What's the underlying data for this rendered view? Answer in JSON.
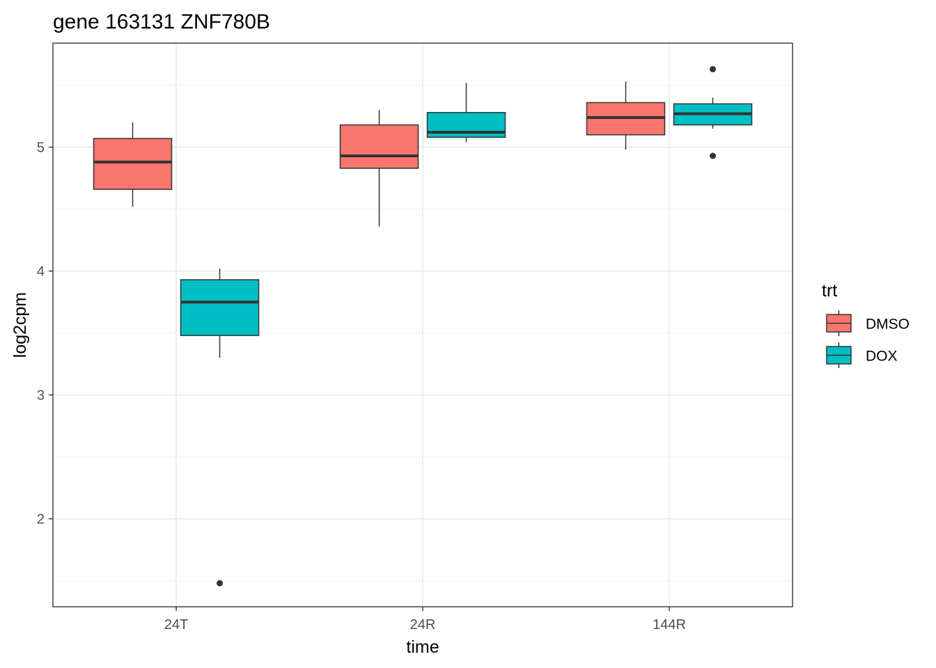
{
  "chart_data": {
    "type": "boxplot",
    "title": "gene 163131 ZNF780B",
    "xlabel": "time",
    "ylabel": "log2cpm",
    "categories": [
      "24T",
      "24R",
      "144R"
    ],
    "ylim": [
      1.29,
      5.84
    ],
    "yticks": [
      2,
      3,
      4,
      5
    ],
    "grid": true,
    "legend": {
      "title": "trt",
      "position": "right",
      "entries": [
        {
          "label": "DMSO",
          "color": "#F8766D"
        },
        {
          "label": "DOX",
          "color": "#00BFC4"
        }
      ]
    },
    "series": [
      {
        "name": "DMSO",
        "color": "#F8766D",
        "boxes": [
          {
            "category": "24T",
            "lower_whisker": 4.52,
            "q1": 4.66,
            "median": 4.88,
            "q3": 5.07,
            "upper_whisker": 5.2,
            "outliers": []
          },
          {
            "category": "24R",
            "lower_whisker": 4.36,
            "q1": 4.83,
            "median": 4.93,
            "q3": 5.18,
            "upper_whisker": 5.3,
            "outliers": []
          },
          {
            "category": "144R",
            "lower_whisker": 4.98,
            "q1": 5.1,
            "median": 5.24,
            "q3": 5.36,
            "upper_whisker": 5.53,
            "outliers": []
          }
        ]
      },
      {
        "name": "DOX",
        "color": "#00BFC4",
        "boxes": [
          {
            "category": "24T",
            "lower_whisker": 3.3,
            "q1": 3.48,
            "median": 3.75,
            "q3": 3.93,
            "upper_whisker": 4.02,
            "outliers": [
              1.48
            ]
          },
          {
            "category": "24R",
            "lower_whisker": 5.04,
            "q1": 5.08,
            "median": 5.12,
            "q3": 5.28,
            "upper_whisker": 5.52,
            "outliers": []
          },
          {
            "category": "144R",
            "lower_whisker": 5.15,
            "q1": 5.18,
            "median": 5.27,
            "q3": 5.35,
            "upper_whisker": 5.4,
            "outliers": [
              5.63,
              4.93
            ]
          }
        ]
      }
    ]
  }
}
